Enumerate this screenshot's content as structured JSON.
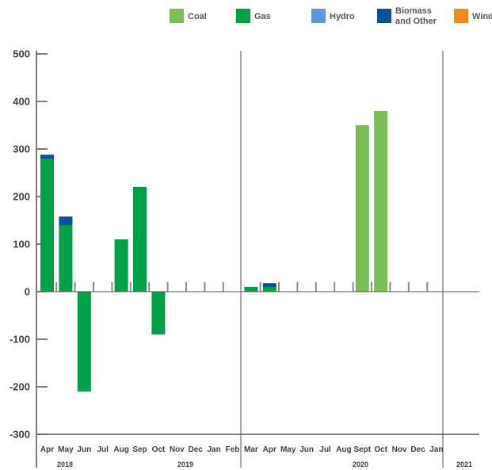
{
  "chart_data": {
    "type": "bar",
    "stacked": true,
    "title": "",
    "xlabel": "",
    "ylabel": "",
    "ylim": [
      -300,
      500
    ],
    "yticks": [
      "500",
      "400",
      "300",
      "200",
      "100",
      "0",
      "-100",
      "-200",
      "-300"
    ],
    "legend": [
      {
        "name": "Coal",
        "color": "#7BBD56"
      },
      {
        "name": "Gas",
        "color": "#00A048"
      },
      {
        "name": "Hydro",
        "color": "#5B9BD5"
      },
      {
        "name": "Biomass and Other",
        "lines": [
          "Biomass",
          "and Other"
        ],
        "color": "#0A4F9C"
      },
      {
        "name": "Wind",
        "color": "#F58B1F"
      }
    ],
    "categories": [
      "Apr",
      "May",
      "Jun",
      "Jul",
      "Aug",
      "Sep",
      "Oct",
      "Nov",
      "Dec",
      "Jan",
      "Feb",
      "Mar",
      "Apr",
      "May",
      "Jun",
      "Jul",
      "Aug",
      "Sept",
      "Oct",
      "Nov",
      "Dec",
      "Jan"
    ],
    "years": [
      "2018",
      "2019",
      "2020",
      "2021"
    ],
    "series": [
      {
        "name": "Coal",
        "values": [
          0,
          0,
          0,
          0,
          0,
          0,
          0,
          0,
          0,
          0,
          0,
          0,
          0,
          0,
          0,
          0,
          0,
          350,
          380,
          0,
          0,
          0
        ]
      },
      {
        "name": "Gas",
        "values": [
          280,
          140,
          -210,
          0,
          110,
          220,
          -90,
          0,
          0,
          0,
          0,
          10,
          10,
          0,
          0,
          0,
          0,
          0,
          0,
          0,
          0,
          0
        ]
      },
      {
        "name": "Hydro",
        "values": [
          0,
          0,
          0,
          0,
          0,
          0,
          0,
          0,
          0,
          0,
          0,
          0,
          0,
          0,
          0,
          0,
          0,
          0,
          0,
          0,
          0,
          0
        ]
      },
      {
        "name": "Biomass and Other",
        "values": [
          8,
          18,
          0,
          0,
          0,
          0,
          0,
          0,
          0,
          0,
          0,
          0,
          8,
          0,
          0,
          0,
          0,
          0,
          0,
          0,
          0,
          0
        ]
      },
      {
        "name": "Wind",
        "values": [
          0,
          0,
          0,
          0,
          0,
          0,
          0,
          0,
          0,
          0,
          0,
          0,
          0,
          0,
          0,
          0,
          0,
          0,
          0,
          0,
          0,
          0
        ]
      }
    ],
    "grid": false
  }
}
